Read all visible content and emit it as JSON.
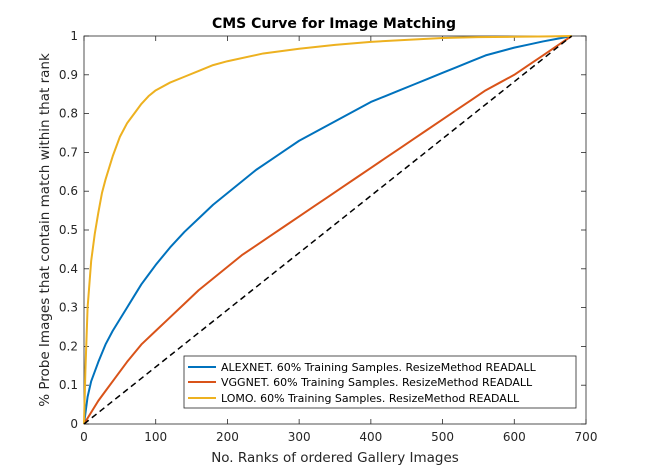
{
  "chart_data": {
    "type": "line",
    "title": "CMS Curve for Image Matching",
    "xlabel": "No. Ranks of ordered Gallery Images",
    "ylabel": "% Probe Images that contain match within that rank",
    "xlim": [
      0,
      700
    ],
    "ylim": [
      0,
      1
    ],
    "xticks": [
      0,
      100,
      200,
      300,
      400,
      500,
      600,
      700
    ],
    "yticks": [
      0,
      0.1,
      0.2,
      0.3,
      0.4,
      0.5,
      0.6,
      0.7,
      0.8,
      0.9,
      1
    ],
    "xtick_labels": [
      "0",
      "100",
      "200",
      "300",
      "400",
      "500",
      "600",
      "700"
    ],
    "ytick_labels": [
      "0",
      "0.1",
      "0.2",
      "0.3",
      "0.4",
      "0.5",
      "0.6",
      "0.7",
      "0.8",
      "0.9",
      "1"
    ],
    "grid": false,
    "legend_position": "bottom-right",
    "series": [
      {
        "name": "ALEXNET. 60% Training Samples. ResizeMethod READALL",
        "color": "#0072BD",
        "style": "solid",
        "x": [
          0,
          5,
          10,
          20,
          30,
          40,
          50,
          60,
          70,
          80,
          90,
          100,
          120,
          140,
          160,
          180,
          200,
          220,
          240,
          260,
          280,
          300,
          320,
          340,
          360,
          380,
          400,
          420,
          440,
          460,
          480,
          500,
          520,
          540,
          560,
          580,
          600,
          620,
          640,
          660,
          680
        ],
        "y": [
          0,
          0.07,
          0.11,
          0.16,
          0.205,
          0.24,
          0.27,
          0.3,
          0.33,
          0.36,
          0.385,
          0.41,
          0.455,
          0.495,
          0.53,
          0.565,
          0.595,
          0.625,
          0.655,
          0.68,
          0.705,
          0.73,
          0.75,
          0.77,
          0.79,
          0.81,
          0.83,
          0.845,
          0.86,
          0.875,
          0.89,
          0.905,
          0.92,
          0.935,
          0.95,
          0.96,
          0.97,
          0.978,
          0.986,
          0.993,
          1.0
        ]
      },
      {
        "name": "VGGNET. 60% Training Samples. ResizeMethod READALL",
        "color": "#D95319",
        "style": "solid",
        "x": [
          0,
          10,
          20,
          30,
          40,
          60,
          80,
          100,
          120,
          140,
          160,
          180,
          200,
          220,
          240,
          260,
          280,
          300,
          320,
          340,
          360,
          380,
          400,
          420,
          440,
          460,
          480,
          500,
          520,
          540,
          560,
          580,
          600,
          620,
          640,
          660,
          680
        ],
        "y": [
          0,
          0.03,
          0.06,
          0.085,
          0.11,
          0.16,
          0.205,
          0.24,
          0.275,
          0.31,
          0.345,
          0.375,
          0.405,
          0.435,
          0.46,
          0.485,
          0.51,
          0.535,
          0.56,
          0.585,
          0.61,
          0.635,
          0.66,
          0.685,
          0.71,
          0.735,
          0.76,
          0.785,
          0.81,
          0.835,
          0.86,
          0.88,
          0.9,
          0.925,
          0.95,
          0.975,
          1.0
        ]
      },
      {
        "name": "LOMO. 60% Training Samples. ResizeMethod READALL",
        "color": "#EDB120",
        "style": "solid",
        "x": [
          0,
          2,
          5,
          10,
          15,
          20,
          25,
          30,
          40,
          50,
          60,
          70,
          80,
          90,
          100,
          120,
          140,
          160,
          180,
          200,
          250,
          300,
          350,
          400,
          450,
          500,
          550,
          600,
          650,
          680
        ],
        "y": [
          0,
          0.14,
          0.3,
          0.42,
          0.49,
          0.545,
          0.595,
          0.63,
          0.69,
          0.74,
          0.775,
          0.8,
          0.825,
          0.845,
          0.86,
          0.88,
          0.895,
          0.91,
          0.925,
          0.935,
          0.955,
          0.967,
          0.977,
          0.985,
          0.99,
          0.995,
          0.997,
          0.998,
          0.999,
          1.0
        ]
      },
      {
        "name": "",
        "color": "#000000",
        "style": "dashed",
        "x": [
          0,
          680
        ],
        "y": [
          0,
          1
        ]
      }
    ]
  }
}
